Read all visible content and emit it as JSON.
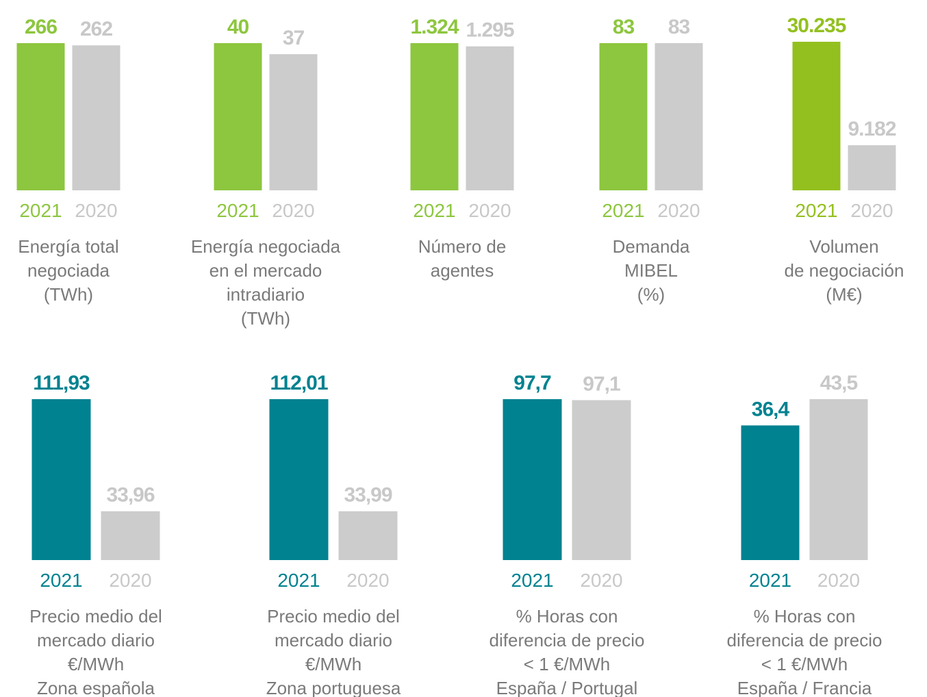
{
  "chart_data": [
    {
      "type": "bar",
      "title": [
        "Energía total",
        "negociada",
        "(TWh)"
      ],
      "categories": [
        "2021",
        "2020"
      ],
      "values": [
        266,
        262
      ],
      "colors": [
        "#8dc63f",
        "#cccccc"
      ]
    },
    {
      "type": "bar",
      "title": [
        "Energía negociada",
        "en el mercado",
        "intradiario",
        "(TWh)"
      ],
      "categories": [
        "2021",
        "2020"
      ],
      "values": [
        40,
        37
      ],
      "colors": [
        "#8dc63f",
        "#cccccc"
      ]
    },
    {
      "type": "bar",
      "title": [
        "Número de",
        "agentes"
      ],
      "categories": [
        "2021",
        "2020"
      ],
      "values": [
        1324,
        1295
      ],
      "value_labels": [
        "1.324",
        "1.295"
      ],
      "colors": [
        "#8dc63f",
        "#cccccc"
      ]
    },
    {
      "type": "bar",
      "title": [
        "Demanda",
        "MIBEL",
        "(%)"
      ],
      "categories": [
        "2021",
        "2020"
      ],
      "values": [
        83,
        83
      ],
      "colors": [
        "#8dc63f",
        "#cccccc"
      ]
    },
    {
      "type": "bar",
      "title": [
        "Volumen",
        "de negociación",
        "(M€)"
      ],
      "categories": [
        "2021",
        "2020"
      ],
      "values": [
        30235,
        9182
      ],
      "value_labels": [
        "30.235",
        "9.182"
      ],
      "colors": [
        "#93c01f",
        "#cccccc"
      ]
    },
    {
      "type": "bar",
      "title": [
        "Precio medio del",
        "mercado diario",
        "€/MWh",
        "Zona española"
      ],
      "categories": [
        "2021",
        "2020"
      ],
      "values": [
        111.93,
        33.96
      ],
      "value_labels": [
        "111,93",
        "33,96"
      ],
      "colors": [
        "#008290",
        "#cccccc"
      ]
    },
    {
      "type": "bar",
      "title": [
        "Precio medio del",
        "mercado diario",
        "€/MWh",
        "Zona portuguesa"
      ],
      "categories": [
        "2021",
        "2020"
      ],
      "values": [
        112.01,
        33.99
      ],
      "value_labels": [
        "112,01",
        "33,99"
      ],
      "colors": [
        "#008290",
        "#cccccc"
      ]
    },
    {
      "type": "bar",
      "title": [
        "% Horas con",
        "diferencia de precio",
        "< 1 €/MWh",
        "España / Portugal"
      ],
      "categories": [
        "2021",
        "2020"
      ],
      "values": [
        97.7,
        97.1
      ],
      "value_labels": [
        "97,7",
        "97,1"
      ],
      "colors": [
        "#008290",
        "#cccccc"
      ]
    },
    {
      "type": "bar",
      "title": [
        "% Horas con",
        "diferencia de precio",
        "< 1 €/MWh",
        "España / Francia"
      ],
      "categories": [
        "2021",
        "2020"
      ],
      "values": [
        36.4,
        43.5
      ],
      "value_labels": [
        "36,4",
        "43,5"
      ],
      "colors": [
        "#008290",
        "#cccccc"
      ]
    }
  ]
}
